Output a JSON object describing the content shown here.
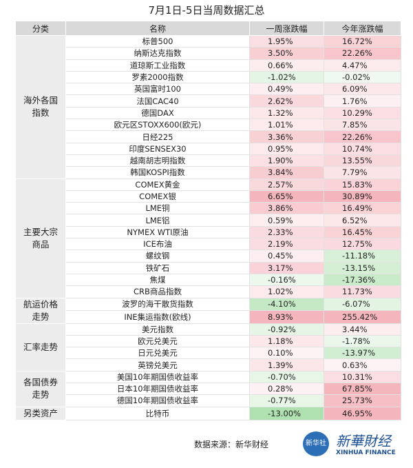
{
  "title": "7月1日-5日当周数据汇总",
  "table": {
    "header": [
      "分类",
      "名称",
      "一周涨跌幅",
      "今年涨跌幅"
    ],
    "groups": [
      {
        "label": "海外各国指数",
        "rows": [
          [
            "标普500",
            "1.95%",
            "16.72%"
          ],
          [
            "纳斯达克指数",
            "3.50%",
            "22.26%"
          ],
          [
            "道琼斯工业指数",
            "0.66%",
            "4.47%"
          ],
          [
            "罗素2000指数",
            "-1.02%",
            "-0.02%"
          ],
          [
            "英国富时100",
            "0.49%",
            "6.09%"
          ],
          [
            "法国CAC40",
            "2.62%",
            "1.76%"
          ],
          [
            "德国DAX",
            "1.32%",
            "10.29%"
          ],
          [
            "欧元区STOXX600(欧元)",
            "1.01%",
            "7.85%"
          ],
          [
            "日经225",
            "3.36%",
            "22.26%"
          ],
          [
            "印度SENSEX30",
            "0.95%",
            "10.74%"
          ],
          [
            "越南胡志明指数",
            "1.90%",
            "13.55%"
          ],
          [
            "韩国KOSPI指数",
            "3.84%",
            "7.79%"
          ]
        ]
      },
      {
        "label": "主要大宗商品",
        "rows": [
          [
            "COMEX黄金",
            "2.57%",
            "15.83%"
          ],
          [
            "COMEX银",
            "6.65%",
            "30.89%"
          ],
          [
            "LME铜",
            "3.86%",
            "16.49%"
          ],
          [
            "LME铝",
            "0.59%",
            "6.52%"
          ],
          [
            "NYMEX WTI原油",
            "2.33%",
            "16.45%"
          ],
          [
            "ICE布油",
            "2.19%",
            "12.75%"
          ],
          [
            "螺纹钢",
            "0.45%",
            "-11.18%"
          ],
          [
            "铁矿石",
            "3.17%",
            "-13.15%"
          ],
          [
            "焦煤",
            "-0.16%",
            "-17.36%"
          ],
          [
            "CRB商品指数",
            "1.02%",
            "11.73%"
          ]
        ]
      },
      {
        "label": "航运价格走势",
        "rows": [
          [
            "波罗的海干散货指数",
            "-4.10%",
            "-6.07%"
          ],
          [
            "INE集运指数(欧线)",
            "8.93%",
            "255.42%"
          ]
        ]
      },
      {
        "label": "汇率走势",
        "rows": [
          [
            "美元指数",
            "-0.92%",
            "3.44%"
          ],
          [
            "欧元兑美元",
            "1.18%",
            "-1.78%"
          ],
          [
            "日元兑美元",
            "0.10%",
            "-13.97%"
          ],
          [
            "英镑兑美元",
            "1.39%",
            "0.63%"
          ]
        ]
      },
      {
        "label": "各国债券走势",
        "rows": [
          [
            "美国10年期国债收益率",
            "-0.70%",
            "10.31%"
          ],
          [
            "日本10年期国债收益率",
            "0.28%",
            "67.85%"
          ],
          [
            "德国10年期国债收益率",
            "-0.77%",
            "25.73%"
          ]
        ]
      },
      {
        "label": "另类资产",
        "rows": [
          [
            "比特币",
            "-13.00%",
            "46.95%"
          ]
        ]
      }
    ]
  },
  "footer": {
    "source": "数据来源：新华财经",
    "logo_badge": "新华社",
    "logo_cn": "新華財经",
    "logo_en": "XINHUA FINANCE"
  }
}
